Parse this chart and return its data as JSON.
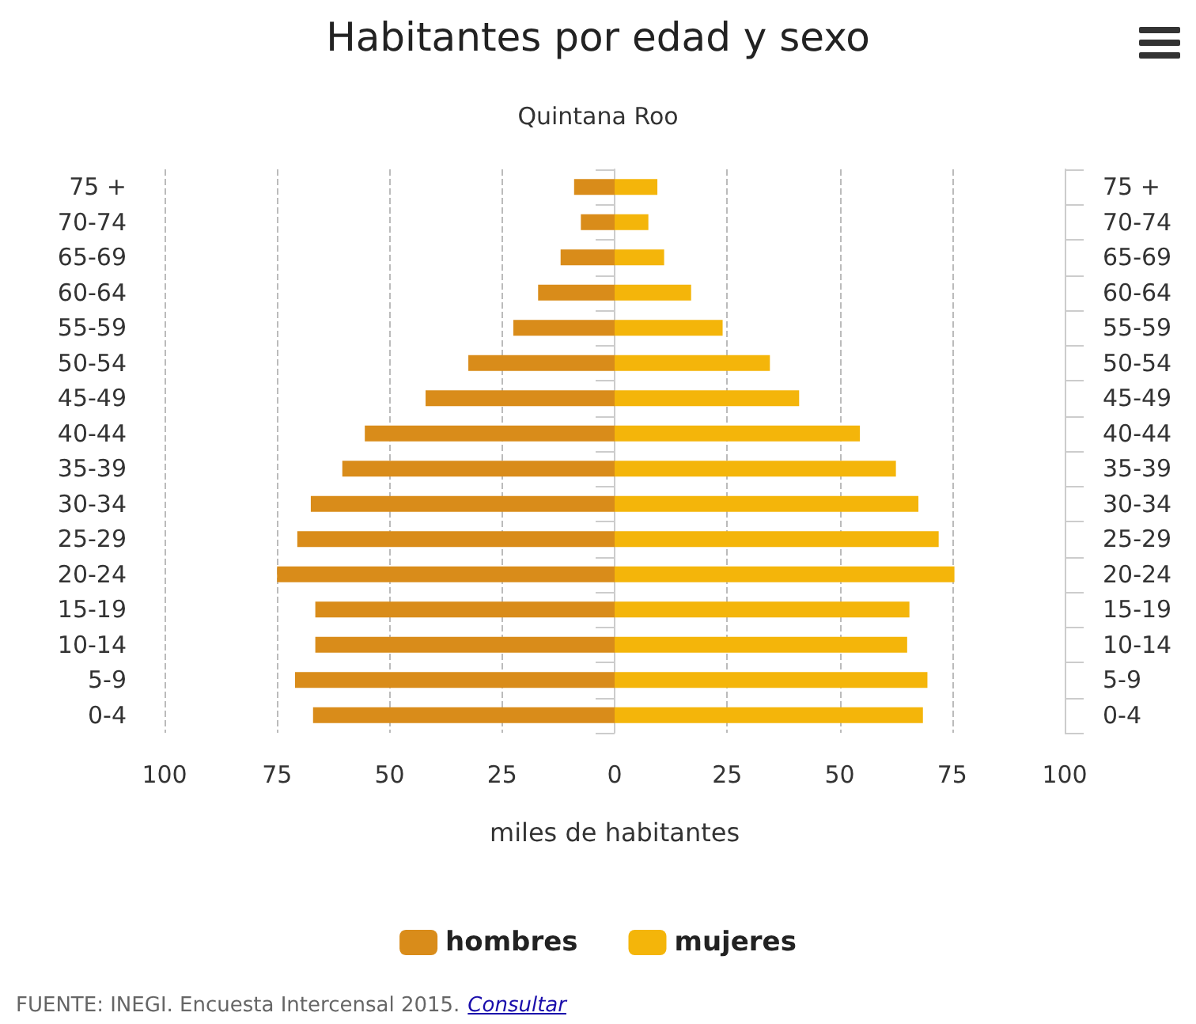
{
  "chart_data": {
    "type": "bar",
    "orientation": "horizontal",
    "stacked": true,
    "title": "Habitantes por edad y sexo",
    "subtitle": "Quintana Roo",
    "xlabel": "miles de habitantes",
    "categories": [
      "75 +",
      "70-74",
      "65-69",
      "60-64",
      "55-59",
      "50-54",
      "45-49",
      "40-44",
      "35-39",
      "30-34",
      "25-29",
      "20-24",
      "15-19",
      "10-14",
      "5-9",
      "0-4"
    ],
    "y2_categories": [
      "75 +",
      "70-74",
      "65-69",
      "60-64",
      "55-59",
      "50-54",
      "45-49",
      "40-44",
      "35-39",
      "30-34",
      "25-29",
      "20-24",
      "15-19",
      "10-14",
      "5-9",
      "0-4"
    ],
    "series": [
      {
        "name": "hombres",
        "color": "#d98c1a",
        "values": [
          -9,
          -7.5,
          -12,
          -17,
          -22.5,
          -32.5,
          -42,
          -55.5,
          -60.5,
          -67.5,
          -70.5,
          -75,
          -66.5,
          -66.5,
          -71,
          -67
        ]
      },
      {
        "name": "mujeres",
        "color": "#f4b50a",
        "values": [
          9.5,
          7.5,
          11,
          17,
          24,
          34.5,
          41,
          54.5,
          62.5,
          67.5,
          72,
          75.5,
          65.5,
          65,
          69.5,
          68.5
        ]
      }
    ],
    "xlim": [
      -100,
      100
    ],
    "xticks": [
      {
        "value": -100,
        "label": "100"
      },
      {
        "value": -75,
        "label": "75"
      },
      {
        "value": -50,
        "label": "50"
      },
      {
        "value": -25,
        "label": "25"
      },
      0,
      25,
      50,
      75,
      100
    ],
    "grid": "x",
    "legend": "bottom",
    "annotations": [
      "FUENTE: INEGI. Encuesta Intercensal 2015.",
      "Consultar"
    ]
  }
}
